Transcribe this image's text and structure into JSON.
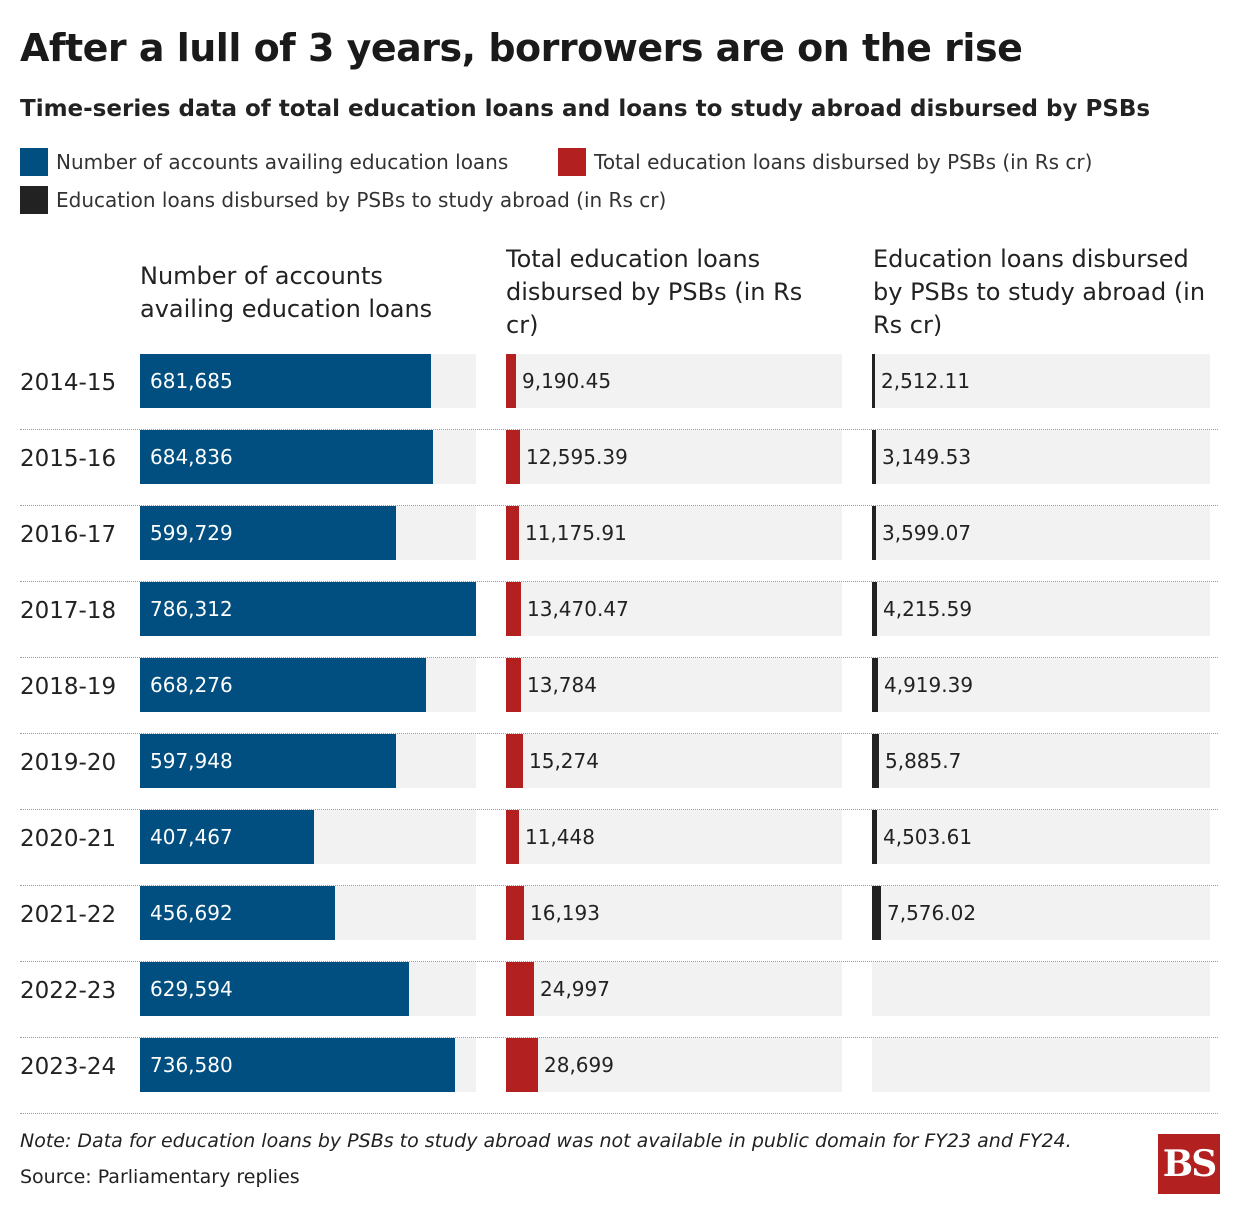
{
  "title": "After a lull of 3 years, borrowers are on the rise",
  "subtitle": "Time-series data of total education loans and loans to study abroad disbursed by PSBs",
  "legend": [
    {
      "label": "Number of accounts availing education loans",
      "color": "#004f80"
    },
    {
      "label": "Total education loans disbursed by PSBs (in Rs cr)",
      "color": "#b32020"
    },
    {
      "label": "Education loans disbursed by PSBs to study abroad (in Rs cr)",
      "color": "#222222"
    }
  ],
  "columns": [
    "Number of accounts availing education loans",
    "Total education loans disbursed by PSBs (in Rs cr)",
    "Education loans disbursed by PSBs to study abroad (in Rs cr)"
  ],
  "note": "Note: Data for education loans by PSBs to study abroad was not available in public domain for FY23 and FY24.",
  "source": "Source: Parliamentary replies",
  "logo_text": "BS",
  "chart_data": {
    "type": "bar",
    "categories": [
      "2014-15",
      "2015-16",
      "2016-17",
      "2017-18",
      "2018-19",
      "2019-20",
      "2020-21",
      "2021-22",
      "2022-23",
      "2023-24"
    ],
    "series": [
      {
        "name": "Number of accounts availing education loans",
        "color": "#004f80",
        "values": [
          681685,
          684836,
          599729,
          786312,
          668276,
          597948,
          407467,
          456692,
          629594,
          736580
        ],
        "labels": [
          "681,685",
          "684,836",
          "599,729",
          "786,312",
          "668,276",
          "597,948",
          "407,467",
          "456,692",
          "629,594",
          "736,580"
        ],
        "max": 786312
      },
      {
        "name": "Total education loans disbursed by PSBs (in Rs cr)",
        "color": "#b32020",
        "values": [
          9190.45,
          12595.39,
          11175.91,
          13470.47,
          13784,
          15274,
          11448,
          16193,
          24997,
          28699
        ],
        "labels": [
          "9,190.45",
          "12,595.39",
          "11,175.91",
          "13,470.47",
          "13,784",
          "15,274",
          "11,448",
          "16,193",
          "24,997",
          "28,699"
        ],
        "max": 300000
      },
      {
        "name": "Education loans disbursed by PSBs to study abroad (in Rs cr)",
        "color": "#222222",
        "values": [
          2512.11,
          3149.53,
          3599.07,
          4215.59,
          4919.39,
          5885.7,
          4503.61,
          7576.02,
          null,
          null
        ],
        "labels": [
          "2,512.11",
          "3,149.53",
          "3,599.07",
          "4,215.59",
          "4,919.39",
          "5,885.7",
          "4,503.61",
          "7,576.02",
          "",
          ""
        ],
        "max": 300000
      }
    ]
  }
}
